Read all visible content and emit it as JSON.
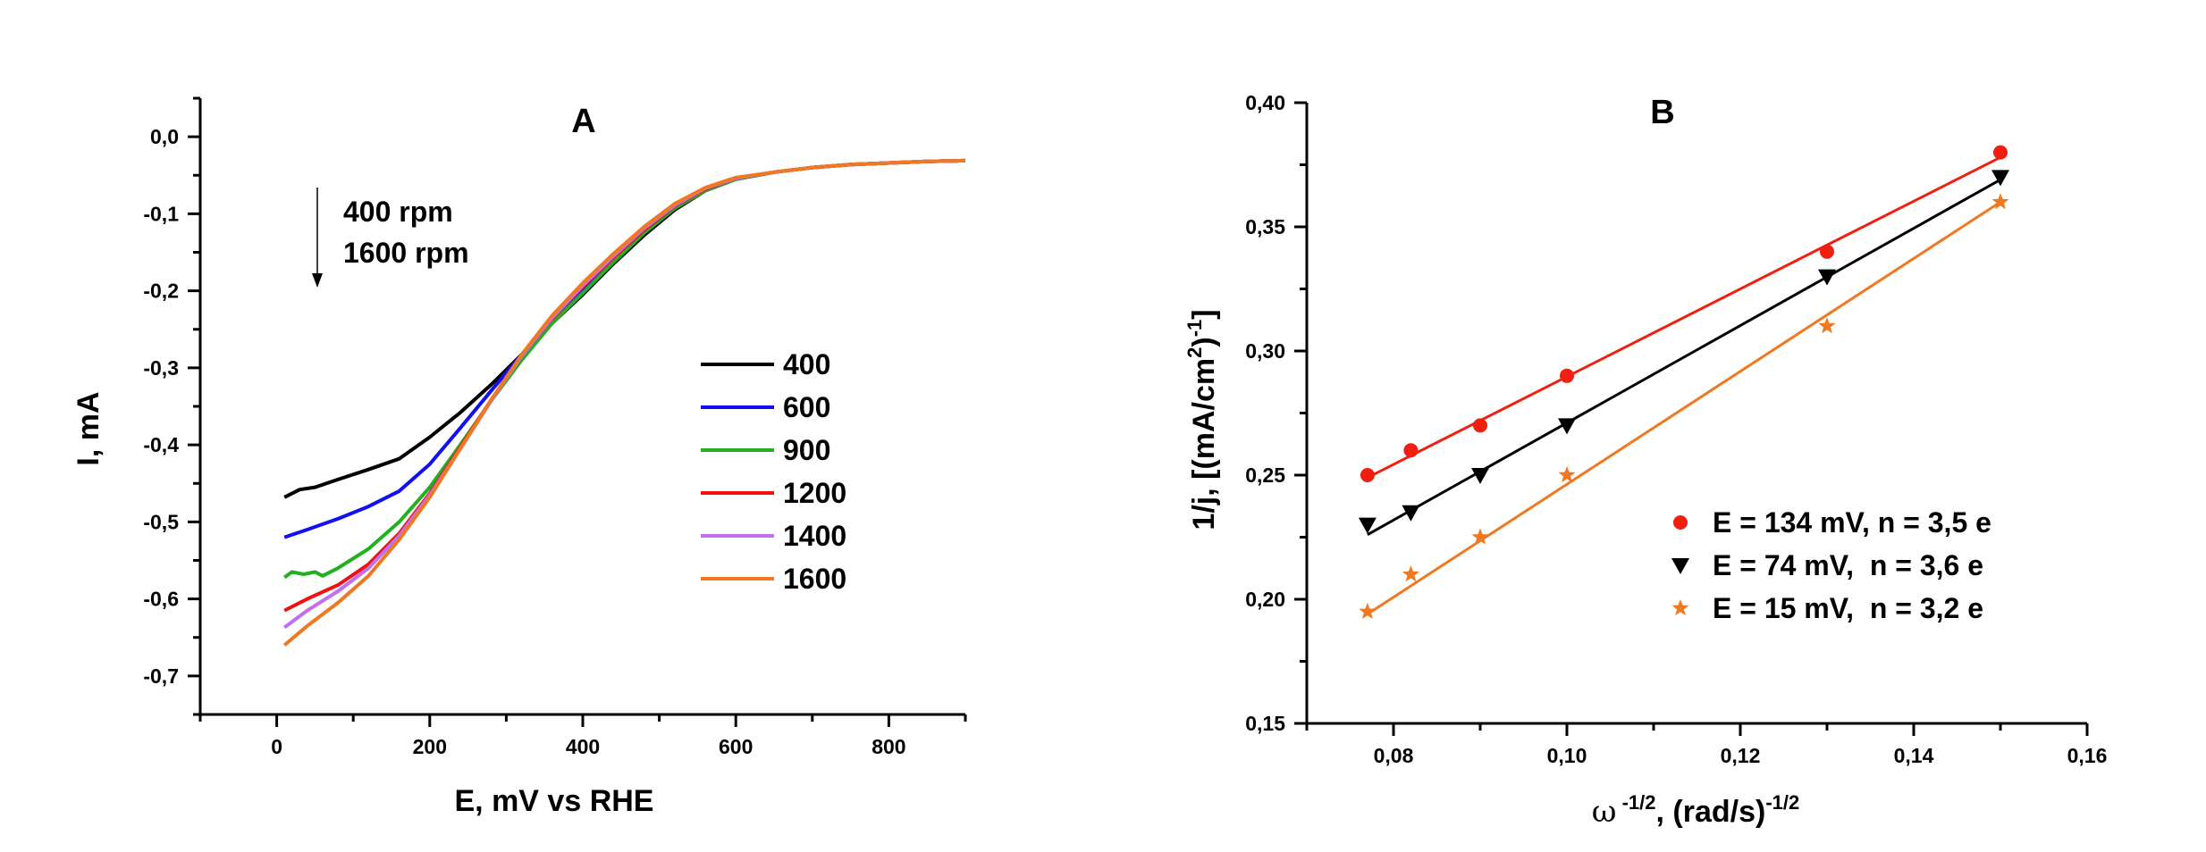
{
  "chart_data": [
    {
      "panel": "A",
      "type": "line",
      "xlabel": "E, mV vs RHE",
      "ylabel": "I, mA",
      "xlim": [
        -100,
        900
      ],
      "ylim": [
        -0.75,
        0.05
      ],
      "x_ticks": [
        0,
        200,
        400,
        600,
        800
      ],
      "x_tick_labels": [
        "0",
        "200",
        "400",
        "600",
        "800"
      ],
      "y_ticks": [
        0.0,
        -0.1,
        -0.2,
        -0.3,
        -0.4,
        -0.5,
        -0.6,
        -0.7
      ],
      "y_tick_labels": [
        "0,0",
        "-0,1",
        "-0,2",
        "-0,3",
        "-0,4",
        "-0,5",
        "-0,6",
        "-0,7"
      ],
      "annotation": [
        "400 rpm",
        "1600 rpm"
      ],
      "legend_position": "center-right",
      "series": [
        {
          "name": "400",
          "color": "#000000",
          "points": [
            [
              10,
              -0.468
            ],
            [
              30,
              -0.458
            ],
            [
              50,
              -0.455
            ],
            [
              80,
              -0.445
            ],
            [
              120,
              -0.432
            ],
            [
              160,
              -0.418
            ],
            [
              200,
              -0.39
            ],
            [
              240,
              -0.358
            ],
            [
              280,
              -0.322
            ],
            [
              320,
              -0.283
            ],
            [
              360,
              -0.242
            ],
            [
              400,
              -0.205
            ],
            [
              440,
              -0.165
            ],
            [
              480,
              -0.128
            ],
            [
              520,
              -0.095
            ],
            [
              560,
              -0.07
            ],
            [
              600,
              -0.055
            ],
            [
              650,
              -0.046
            ],
            [
              700,
              -0.04
            ],
            [
              750,
              -0.036
            ],
            [
              800,
              -0.034
            ],
            [
              850,
              -0.032
            ],
            [
              900,
              -0.031
            ]
          ]
        },
        {
          "name": "600",
          "color": "#1010f0",
          "points": [
            [
              10,
              -0.52
            ],
            [
              40,
              -0.51
            ],
            [
              80,
              -0.496
            ],
            [
              120,
              -0.48
            ],
            [
              160,
              -0.46
            ],
            [
              200,
              -0.425
            ],
            [
              240,
              -0.378
            ],
            [
              280,
              -0.33
            ],
            [
              320,
              -0.283
            ],
            [
              360,
              -0.238
            ],
            [
              400,
              -0.2
            ],
            [
              440,
              -0.162
            ],
            [
              480,
              -0.125
            ],
            [
              520,
              -0.093
            ],
            [
              560,
              -0.07
            ],
            [
              600,
              -0.055
            ],
            [
              650,
              -0.046
            ],
            [
              700,
              -0.04
            ],
            [
              750,
              -0.036
            ],
            [
              800,
              -0.034
            ],
            [
              850,
              -0.032
            ],
            [
              900,
              -0.031
            ]
          ]
        },
        {
          "name": "900",
          "color": "#20b020",
          "points": [
            [
              10,
              -0.572
            ],
            [
              20,
              -0.565
            ],
            [
              35,
              -0.568
            ],
            [
              50,
              -0.565
            ],
            [
              60,
              -0.57
            ],
            [
              80,
              -0.56
            ],
            [
              120,
              -0.535
            ],
            [
              160,
              -0.5
            ],
            [
              200,
              -0.455
            ],
            [
              240,
              -0.4
            ],
            [
              280,
              -0.343
            ],
            [
              320,
              -0.29
            ],
            [
              360,
              -0.242
            ],
            [
              400,
              -0.203
            ],
            [
              440,
              -0.163
            ],
            [
              480,
              -0.125
            ],
            [
              520,
              -0.093
            ],
            [
              560,
              -0.07
            ],
            [
              600,
              -0.055
            ],
            [
              650,
              -0.046
            ],
            [
              700,
              -0.04
            ],
            [
              750,
              -0.036
            ],
            [
              800,
              -0.034
            ],
            [
              850,
              -0.032
            ],
            [
              900,
              -0.031
            ]
          ]
        },
        {
          "name": "1200",
          "color": "#f01010",
          "points": [
            [
              10,
              -0.615
            ],
            [
              40,
              -0.6
            ],
            [
              80,
              -0.582
            ],
            [
              120,
              -0.555
            ],
            [
              160,
              -0.515
            ],
            [
              200,
              -0.463
            ],
            [
              240,
              -0.403
            ],
            [
              280,
              -0.342
            ],
            [
              320,
              -0.285
            ],
            [
              360,
              -0.236
            ],
            [
              400,
              -0.195
            ],
            [
              440,
              -0.157
            ],
            [
              480,
              -0.121
            ],
            [
              520,
              -0.09
            ],
            [
              560,
              -0.068
            ],
            [
              600,
              -0.054
            ],
            [
              650,
              -0.046
            ],
            [
              700,
              -0.04
            ],
            [
              750,
              -0.036
            ],
            [
              800,
              -0.034
            ],
            [
              850,
              -0.032
            ],
            [
              900,
              -0.031
            ]
          ]
        },
        {
          "name": "1400",
          "color": "#c070f0",
          "points": [
            [
              10,
              -0.637
            ],
            [
              40,
              -0.615
            ],
            [
              80,
              -0.59
            ],
            [
              120,
              -0.56
            ],
            [
              160,
              -0.518
            ],
            [
              200,
              -0.465
            ],
            [
              240,
              -0.405
            ],
            [
              280,
              -0.343
            ],
            [
              320,
              -0.285
            ],
            [
              360,
              -0.235
            ],
            [
              400,
              -0.193
            ],
            [
              440,
              -0.155
            ],
            [
              480,
              -0.119
            ],
            [
              520,
              -0.089
            ],
            [
              560,
              -0.067
            ],
            [
              600,
              -0.054
            ],
            [
              650,
              -0.046
            ],
            [
              700,
              -0.04
            ],
            [
              750,
              -0.036
            ],
            [
              800,
              -0.034
            ],
            [
              850,
              -0.032
            ],
            [
              900,
              -0.031
            ]
          ]
        },
        {
          "name": "1600",
          "color": "#f07820",
          "points": [
            [
              10,
              -0.66
            ],
            [
              40,
              -0.635
            ],
            [
              80,
              -0.605
            ],
            [
              120,
              -0.57
            ],
            [
              160,
              -0.523
            ],
            [
              200,
              -0.468
            ],
            [
              240,
              -0.405
            ],
            [
              280,
              -0.342
            ],
            [
              320,
              -0.283
            ],
            [
              360,
              -0.232
            ],
            [
              400,
              -0.19
            ],
            [
              440,
              -0.152
            ],
            [
              480,
              -0.117
            ],
            [
              520,
              -0.087
            ],
            [
              560,
              -0.066
            ],
            [
              600,
              -0.053
            ],
            [
              650,
              -0.046
            ],
            [
              700,
              -0.04
            ],
            [
              750,
              -0.036
            ],
            [
              800,
              -0.034
            ],
            [
              850,
              -0.032
            ],
            [
              900,
              -0.031
            ]
          ]
        }
      ]
    },
    {
      "panel": "B",
      "type": "scatter",
      "xlabel_symbol": "ω",
      "xlabel_symbol_exp": " -1/2",
      "xlabel_main": ", (rad/s)",
      "xlabel_exp": "-1/2",
      "ylabel_main": "1/j, [(mA/cm",
      "ylabel_exp1": "2",
      "ylabel_mid": ")",
      "ylabel_exp2": "-1",
      "ylabel_end": "]",
      "xlim": [
        0.07,
        0.16
      ],
      "ylim": [
        0.15,
        0.4
      ],
      "x_ticks": [
        0.08,
        0.1,
        0.12,
        0.14,
        0.16
      ],
      "x_tick_labels": [
        "0,08",
        "0,10",
        "0,12",
        "0,14",
        "0,16"
      ],
      "y_ticks": [
        0.15,
        0.2,
        0.25,
        0.3,
        0.35,
        0.4
      ],
      "y_tick_labels": [
        "0,15",
        "0,20",
        "0,25",
        "0,30",
        "0,35",
        "0,40"
      ],
      "legend_position": "bottom-right",
      "series": [
        {
          "name": "E = 134 mV, n = 3,5 e",
          "color": "#f02010",
          "marker": "circle",
          "x": [
            0.077,
            0.082,
            0.09,
            0.1,
            0.13,
            0.15
          ],
          "y": [
            0.25,
            0.26,
            0.27,
            0.29,
            0.34,
            0.38
          ],
          "fit": [
            [
              0.077,
              0.249
            ],
            [
              0.15,
              0.378
            ]
          ]
        },
        {
          "name": "E = 74 mV,  n = 3,6 e",
          "color": "#000000",
          "marker": "triangle-down",
          "x": [
            0.077,
            0.082,
            0.09,
            0.1,
            0.13,
            0.15
          ],
          "y": [
            0.23,
            0.235,
            0.25,
            0.27,
            0.33,
            0.37
          ],
          "fit": [
            [
              0.077,
              0.226
            ],
            [
              0.15,
              0.369
            ]
          ]
        },
        {
          "name": "E = 15 mV,  n = 3,2 e",
          "color": "#f07820",
          "marker": "star",
          "x": [
            0.077,
            0.082,
            0.09,
            0.1,
            0.13,
            0.15
          ],
          "y": [
            0.195,
            0.21,
            0.225,
            0.25,
            0.31,
            0.36
          ],
          "fit": [
            [
              0.077,
              0.194
            ],
            [
              0.15,
              0.36
            ]
          ]
        }
      ]
    }
  ]
}
